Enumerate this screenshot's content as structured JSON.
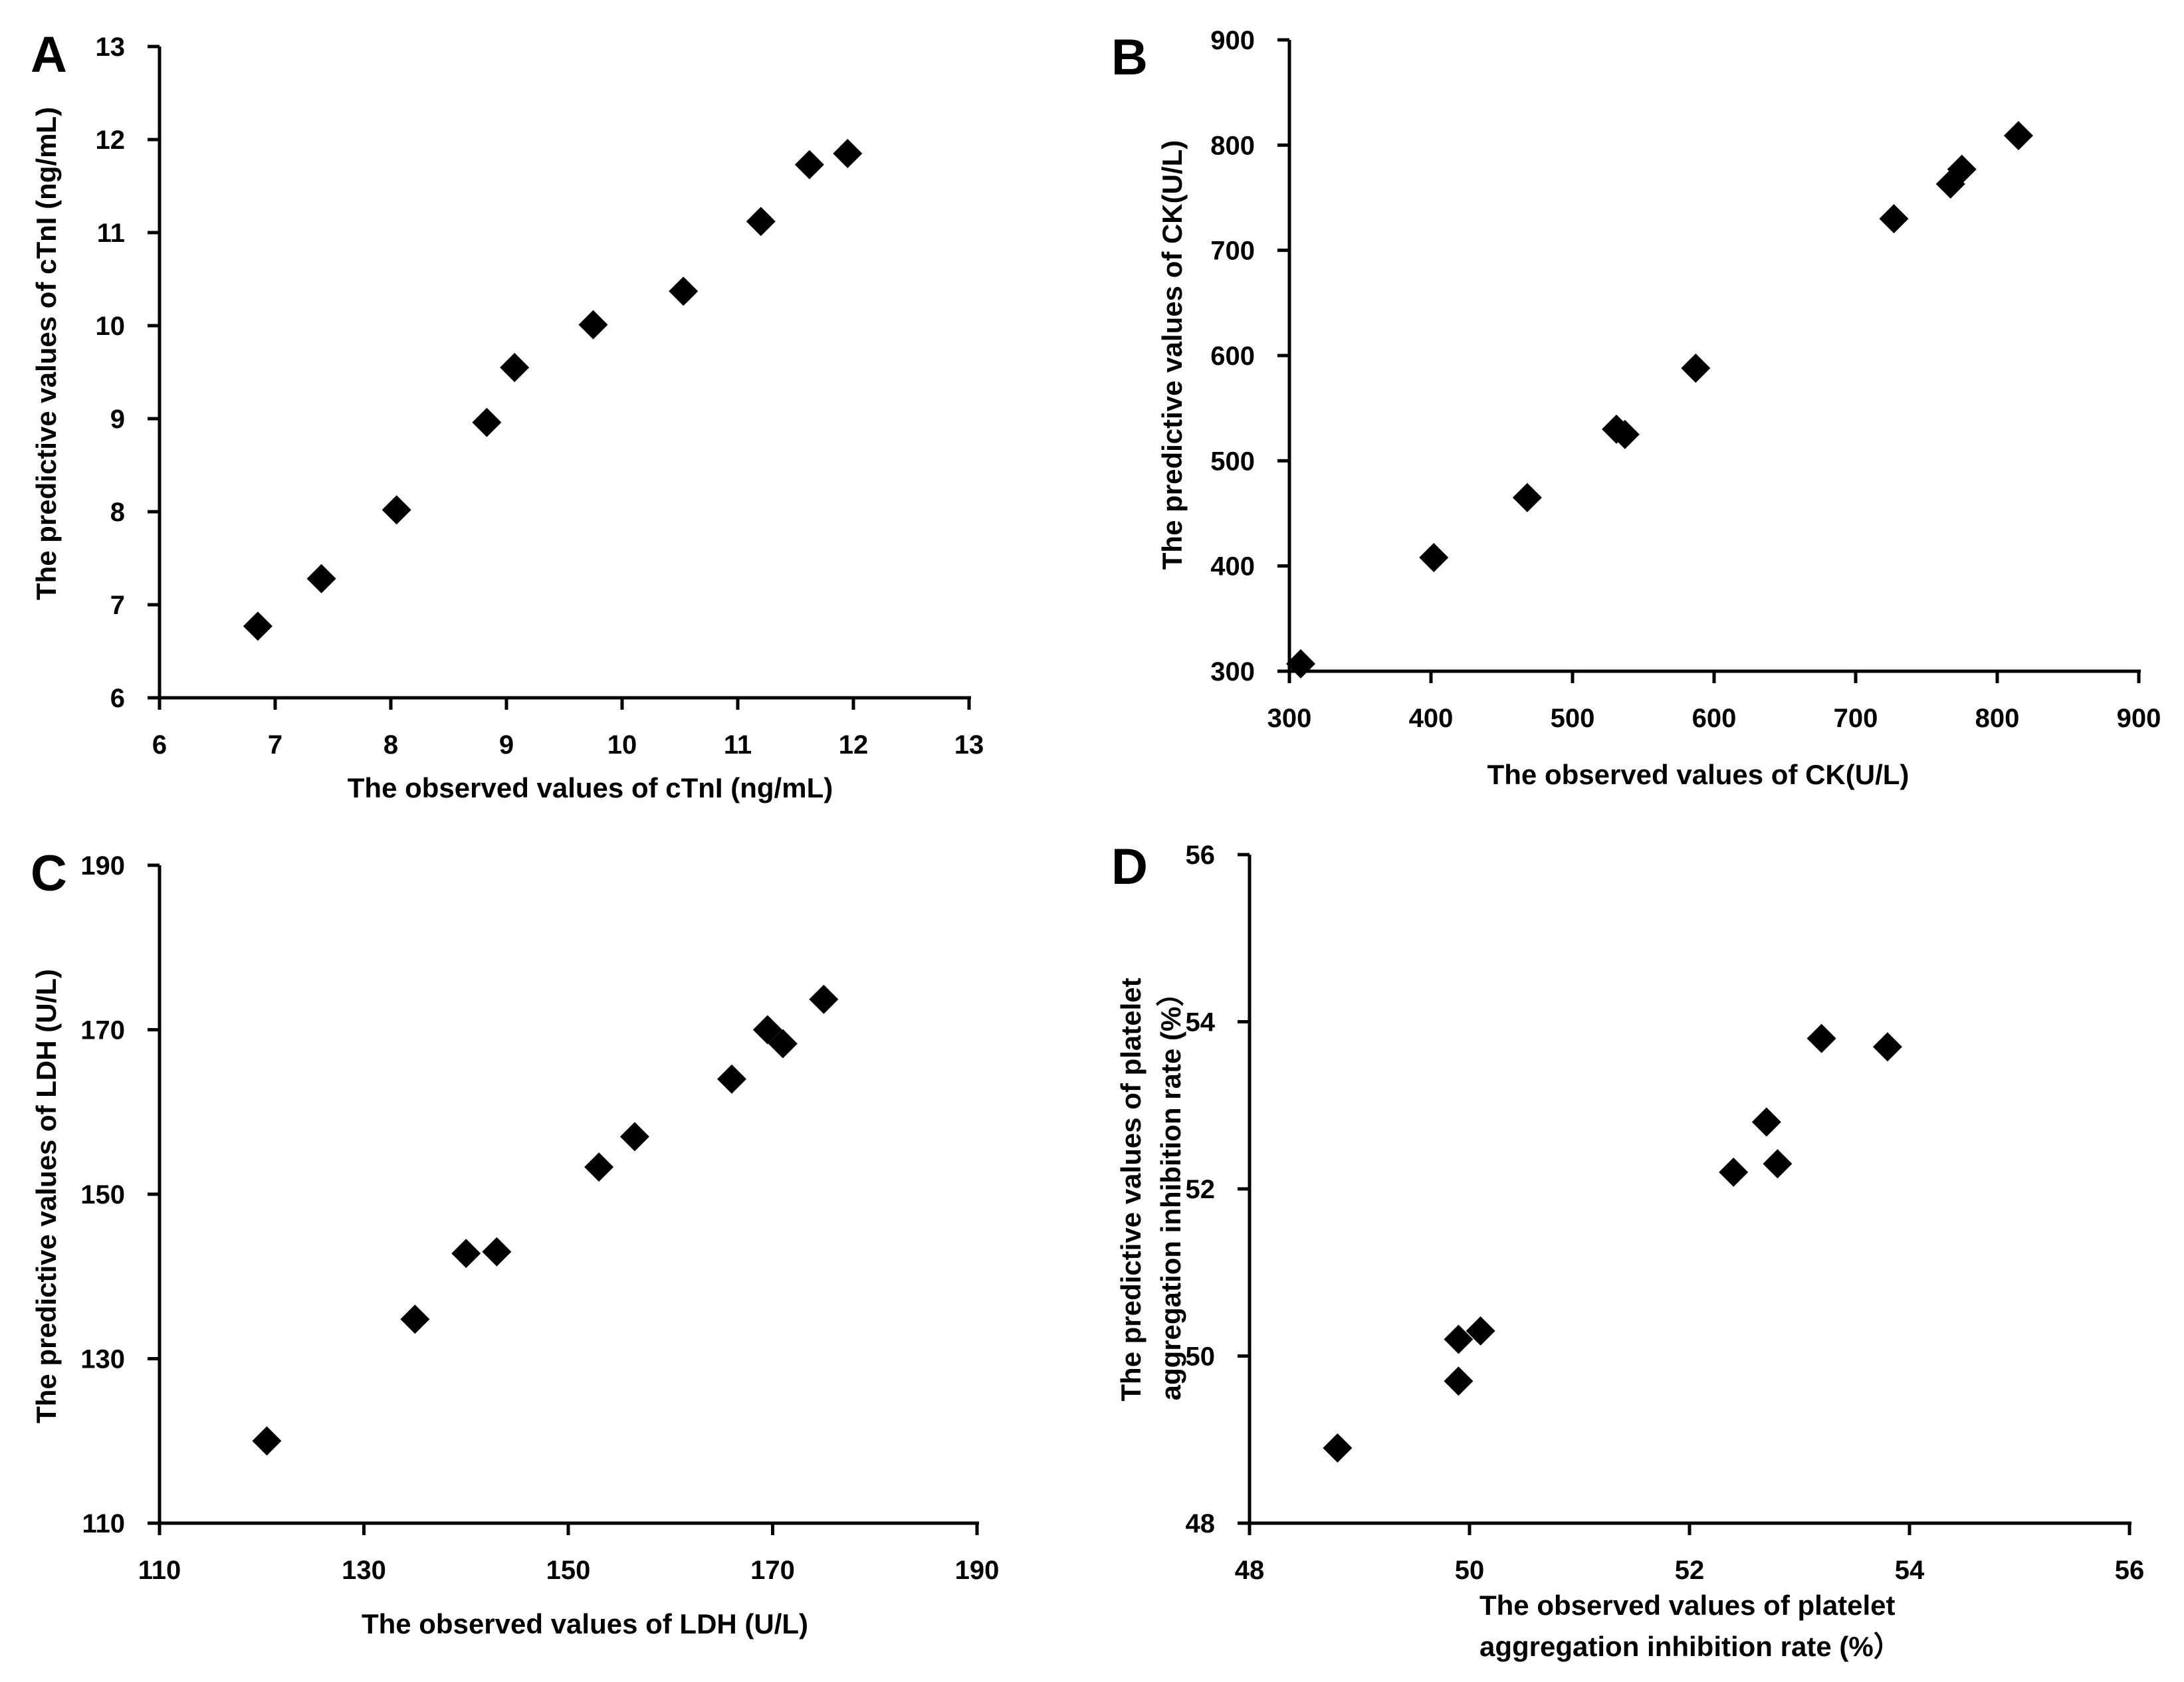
{
  "chart_data": [
    {
      "panel": "A",
      "type": "scatter",
      "xlabel": "The observed values of cTnI (ng/mL)",
      "ylabel": "The predictive values of cTnI (ng/mL)",
      "xlim": [
        6,
        13
      ],
      "ylim": [
        6,
        13
      ],
      "xticks": [
        "6",
        "7",
        "8",
        "9",
        "10",
        "11",
        "12",
        "13"
      ],
      "yticks": [
        "6",
        "7",
        "8",
        "9",
        "10",
        "11",
        "12",
        "13"
      ],
      "marker": "diamond",
      "points": [
        {
          "x": 6.85,
          "y": 6.77
        },
        {
          "x": 7.4,
          "y": 7.28
        },
        {
          "x": 8.05,
          "y": 8.02
        },
        {
          "x": 8.83,
          "y": 8.96
        },
        {
          "x": 9.07,
          "y": 9.55
        },
        {
          "x": 9.75,
          "y": 10.01
        },
        {
          "x": 10.53,
          "y": 10.37
        },
        {
          "x": 11.2,
          "y": 11.12
        },
        {
          "x": 11.62,
          "y": 11.73
        },
        {
          "x": 11.95,
          "y": 11.85
        }
      ]
    },
    {
      "panel": "B",
      "type": "scatter",
      "xlabel": "The observed values of CK(U/L)",
      "ylabel": "The predictive values of CK(U/L)",
      "xlim": [
        300,
        900
      ],
      "ylim": [
        300,
        900
      ],
      "xticks": [
        "300",
        "400",
        "500",
        "600",
        "700",
        "800",
        "900"
      ],
      "yticks": [
        "300",
        "400",
        "500",
        "600",
        "700",
        "800",
        "900"
      ],
      "marker": "diamond",
      "points": [
        {
          "x": 308,
          "y": 307
        },
        {
          "x": 402,
          "y": 408
        },
        {
          "x": 468,
          "y": 465
        },
        {
          "x": 531,
          "y": 530
        },
        {
          "x": 537,
          "y": 525
        },
        {
          "x": 587,
          "y": 588
        },
        {
          "x": 727,
          "y": 730
        },
        {
          "x": 767,
          "y": 763
        },
        {
          "x": 775,
          "y": 777
        },
        {
          "x": 815,
          "y": 809
        }
      ]
    },
    {
      "panel": "C",
      "type": "scatter",
      "xlabel": "The observed values of LDH (U/L)",
      "ylabel": "The predictive values of LDH (U/L)",
      "xlim": [
        110,
        190
      ],
      "ylim": [
        110,
        190
      ],
      "xticks": [
        "110",
        "130",
        "150",
        "170",
        "190"
      ],
      "yticks": [
        "110",
        "130",
        "150",
        "170",
        "190"
      ],
      "marker": "diamond",
      "points": [
        {
          "x": 120.5,
          "y": 120.0
        },
        {
          "x": 135.0,
          "y": 134.8
        },
        {
          "x": 140.0,
          "y": 142.8
        },
        {
          "x": 143.0,
          "y": 143.0
        },
        {
          "x": 153.0,
          "y": 153.3
        },
        {
          "x": 156.5,
          "y": 157.0
        },
        {
          "x": 166.0,
          "y": 164.0
        },
        {
          "x": 169.5,
          "y": 170.0
        },
        {
          "x": 171.0,
          "y": 168.3
        },
        {
          "x": 175.0,
          "y": 173.7
        }
      ]
    },
    {
      "panel": "D",
      "type": "scatter",
      "xlabel_lines": [
        "The observed values of  platelet",
        "aggregation inhibition rate (%）"
      ],
      "ylabel_lines": [
        "The predictive values of platelet",
        "aggregation inhibition rate (%）"
      ],
      "xlim": [
        48,
        56
      ],
      "ylim": [
        48,
        56
      ],
      "xticks": [
        "48",
        "50",
        "52",
        "54",
        "56"
      ],
      "yticks": [
        "48",
        "50",
        "52",
        "54",
        "56"
      ],
      "marker": "diamond",
      "points": [
        {
          "x": 48.8,
          "y": 48.9
        },
        {
          "x": 49.9,
          "y": 50.2
        },
        {
          "x": 49.9,
          "y": 49.7
        },
        {
          "x": 50.1,
          "y": 50.3
        },
        {
          "x": 52.4,
          "y": 52.2
        },
        {
          "x": 52.7,
          "y": 52.8
        },
        {
          "x": 52.8,
          "y": 52.3
        },
        {
          "x": 53.2,
          "y": 53.8
        },
        {
          "x": 53.8,
          "y": 53.7
        }
      ]
    }
  ]
}
